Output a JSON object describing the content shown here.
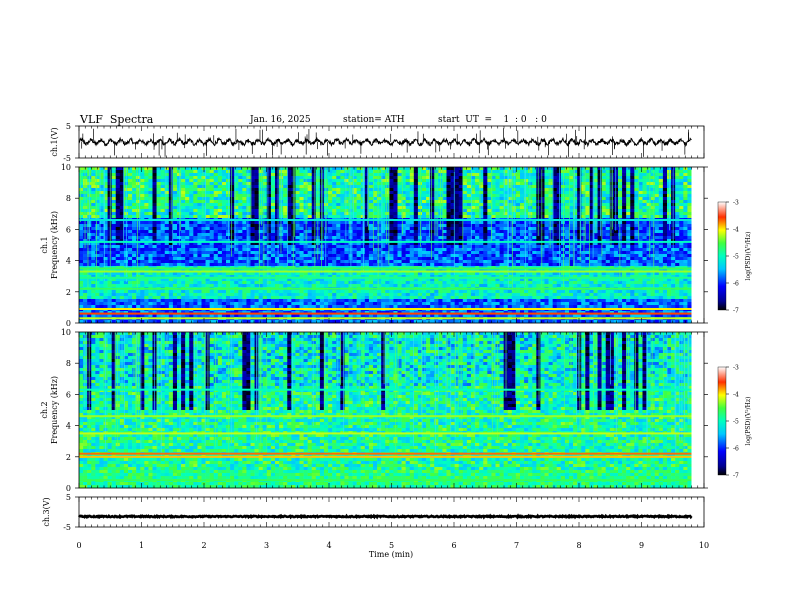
{
  "header": {
    "title": "VLF  Spectra",
    "date": "Jan. 16, 2025",
    "station": "station= ATH",
    "start": "start  UT  =    1  : 0   : 0"
  },
  "chart_data": [
    {
      "type": "line",
      "panel": "ch1-waveform",
      "ylabel": "ch.1(V)",
      "xlim": [
        0,
        10
      ],
      "ylim": [
        -5,
        5
      ],
      "yticks": [
        "5",
        "-5"
      ],
      "baseline": 0,
      "trace_color": "#000000"
    },
    {
      "type": "heatmap",
      "panel": "ch1-spectrogram",
      "ylabel_line1": "ch.1",
      "ylabel_line2": "Frequency (kHz)",
      "xlim": [
        0,
        10
      ],
      "ylim": [
        0,
        10
      ],
      "yticks": [
        "0",
        "2",
        "4",
        "6",
        "8",
        "10"
      ],
      "colorbar": {
        "label": "log(PSD)(V²/Hz)",
        "ticks": [
          "-3",
          "-4",
          "-5",
          "-6",
          "-7"
        ],
        "range": [
          -7,
          -3
        ]
      },
      "data_end_min": 9.8,
      "bands_khz": [
        {
          "f": 0.3,
          "level": -4.2
        },
        {
          "f": 0.6,
          "level": -3.6
        },
        {
          "f": 0.9,
          "level": -4.0
        },
        {
          "f": 2.2,
          "level": -4.6
        },
        {
          "f": 2.9,
          "level": -4.8
        },
        {
          "f": 3.3,
          "level": -4.3
        },
        {
          "f": 3.5,
          "level": -4.6
        },
        {
          "f": 5.2,
          "level": -5.0
        },
        {
          "f": 6.6,
          "level": -5.2
        }
      ]
    },
    {
      "type": "heatmap",
      "panel": "ch2-spectrogram",
      "ylabel_line1": "ch.2",
      "ylabel_line2": "Frequency (kHz)",
      "xlim": [
        0,
        10
      ],
      "ylim": [
        0,
        10
      ],
      "yticks": [
        "0",
        "2",
        "4",
        "6",
        "8",
        "10"
      ],
      "colorbar": {
        "label": "log(PSD)(V²/Hz)",
        "ticks": [
          "-3",
          "-4",
          "-5",
          "-6",
          "-7"
        ],
        "range": [
          -7,
          -3
        ]
      },
      "data_end_min": 9.8,
      "bands_khz": [
        {
          "f": 0.5,
          "level": -4.6
        },
        {
          "f": 2.0,
          "level": -3.9
        },
        {
          "f": 2.2,
          "level": -3.7
        },
        {
          "f": 3.5,
          "level": -4.2
        },
        {
          "f": 4.6,
          "level": -4.3
        },
        {
          "f": 6.3,
          "level": -5.0
        }
      ]
    },
    {
      "type": "line",
      "panel": "ch3-waveform",
      "ylabel": "ch.3(V)",
      "xlabel": "Time  (min)",
      "xlim": [
        0,
        10
      ],
      "ylim": [
        -5,
        5
      ],
      "yticks": [
        "5",
        "-5"
      ],
      "xticks": [
        "0",
        "1",
        "2",
        "3",
        "4",
        "5",
        "6",
        "7",
        "8",
        "9",
        "10"
      ],
      "baseline": -1.5,
      "trace_color": "#000000"
    }
  ]
}
